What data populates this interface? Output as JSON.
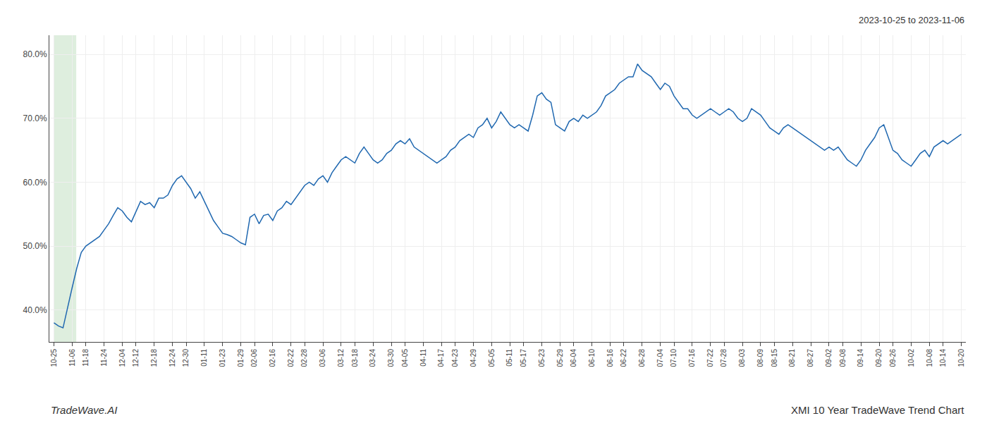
{
  "chart_data": {
    "type": "line",
    "title": "XMI 10 Year TradeWave Trend Chart",
    "subtitle": "2023-10-25 to 2023-11-06",
    "annotations": [
      "TradeWave.AI"
    ],
    "color": "#2068b0",
    "grid": true,
    "ylim": [
      35,
      83
    ],
    "yticks": [
      {
        "value": 40.0,
        "label": "40.0%"
      },
      {
        "value": 50.0,
        "label": "50.0%"
      },
      {
        "value": 60.0,
        "label": "60.0%"
      },
      {
        "value": 70.0,
        "label": "70.0%"
      },
      {
        "value": 80.0,
        "label": "80.0%"
      }
    ],
    "shaded_region": {
      "start": "10-25",
      "end": "11-06",
      "color": "#deeede"
    },
    "categories": [
      "10-25",
      null,
      null,
      null,
      "11-06",
      null,
      null,
      "11-18",
      null,
      null,
      null,
      "11-24",
      null,
      null,
      null,
      "12-04",
      null,
      null,
      "12-12",
      null,
      null,
      null,
      "12-18",
      null,
      null,
      null,
      "12-24",
      null,
      null,
      "12-30",
      null,
      null,
      null,
      "01-11",
      null,
      null,
      null,
      "01-23",
      null,
      null,
      null,
      "01-29",
      null,
      null,
      "02-06",
      null,
      null,
      null,
      "02-16",
      null,
      null,
      null,
      "02-22",
      null,
      null,
      "02-28",
      null,
      null,
      null,
      "03-06",
      null,
      null,
      null,
      "03-12",
      null,
      null,
      "03-18",
      null,
      null,
      null,
      "03-24",
      null,
      null,
      null,
      "03-30",
      null,
      null,
      "04-05",
      null,
      null,
      null,
      "04-11",
      null,
      null,
      null,
      "04-17",
      null,
      null,
      "04-23",
      null,
      null,
      null,
      "04-29",
      null,
      null,
      null,
      "05-05",
      null,
      null,
      null,
      "05-11",
      null,
      null,
      "05-17",
      null,
      null,
      null,
      "05-23",
      null,
      null,
      null,
      "05-29",
      null,
      null,
      "06-04",
      null,
      null,
      null,
      "06-10",
      null,
      null,
      null,
      "06-16",
      null,
      null,
      "06-22",
      null,
      null,
      null,
      "06-28",
      null,
      null,
      null,
      "07-04",
      null,
      null,
      "07-10",
      null,
      null,
      null,
      "07-16",
      null,
      null,
      null,
      "07-22",
      null,
      null,
      "07-28",
      null,
      null,
      null,
      "08-03",
      null,
      null,
      null,
      "08-09",
      null,
      null,
      "08-15",
      null,
      null,
      null,
      "08-21",
      null,
      null,
      null,
      "08-27",
      null,
      null,
      null,
      "09-02",
      null,
      null,
      "09-08",
      null,
      null,
      null,
      "09-14",
      null,
      null,
      null,
      "09-20",
      null,
      null,
      "09-26",
      null,
      null,
      null,
      "10-02",
      null,
      null,
      null,
      "10-08",
      null,
      null,
      "10-14",
      null,
      null,
      null,
      "10-20"
    ],
    "values": [
      38.0,
      37.5,
      37.2,
      40.5,
      43.5,
      46.5,
      49.0,
      50.0,
      50.5,
      51.0,
      51.5,
      52.5,
      53.5,
      54.8,
      56.0,
      55.5,
      54.5,
      53.8,
      55.5,
      57.0,
      56.5,
      56.8,
      56.0,
      57.5,
      57.5,
      58.0,
      59.5,
      60.5,
      61.0,
      60.0,
      59.0,
      57.5,
      58.5,
      57.0,
      55.5,
      54.0,
      53.0,
      52.0,
      51.8,
      51.5,
      51.0,
      50.5,
      50.2,
      54.5,
      55.0,
      53.5,
      54.8,
      55.0,
      54.0,
      55.5,
      56.0,
      57.0,
      56.5,
      57.5,
      58.5,
      59.5,
      60.0,
      59.5,
      60.5,
      61.0,
      60.0,
      61.5,
      62.5,
      63.5,
      64.0,
      63.5,
      63.0,
      64.5,
      65.5,
      64.5,
      63.5,
      63.0,
      63.5,
      64.5,
      65.0,
      66.0,
      66.5,
      66.0,
      66.8,
      65.5,
      65.0,
      64.5,
      64.0,
      63.5,
      63.0,
      63.5,
      64.0,
      65.0,
      65.5,
      66.5,
      67.0,
      67.5,
      67.0,
      68.5,
      69.0,
      70.0,
      68.5,
      69.5,
      71.0,
      70.0,
      69.0,
      68.5,
      69.0,
      68.5,
      68.0,
      70.5,
      73.5,
      74.0,
      73.0,
      72.5,
      69.0,
      68.5,
      68.0,
      69.5,
      70.0,
      69.5,
      70.5,
      70.0,
      70.5,
      71.0,
      72.0,
      73.5,
      74.0,
      74.5,
      75.5,
      76.0,
      76.5,
      76.5,
      78.5,
      77.5,
      77.0,
      76.5,
      75.5,
      74.5,
      75.5,
      75.0,
      73.5,
      72.5,
      71.5,
      71.5,
      70.5,
      70.0,
      70.5,
      71.0,
      71.5,
      71.0,
      70.5,
      71.0,
      71.5,
      71.0,
      70.0,
      69.5,
      70.0,
      71.5,
      71.0,
      70.5,
      69.5,
      68.5,
      68.0,
      67.5,
      68.5,
      69.0,
      68.5,
      68.0,
      67.5,
      67.0,
      66.5,
      66.0,
      65.5,
      65.0,
      65.5,
      65.0,
      65.5,
      64.5,
      63.5,
      63.0,
      62.5,
      63.5,
      65.0,
      66.0,
      67.0,
      68.5,
      69.0,
      67.0,
      65.0,
      64.5,
      63.5,
      63.0,
      62.5,
      63.5,
      64.5,
      65.0,
      64.0,
      65.5,
      66.0,
      66.5,
      66.0,
      66.5,
      67.0,
      67.5
    ]
  }
}
